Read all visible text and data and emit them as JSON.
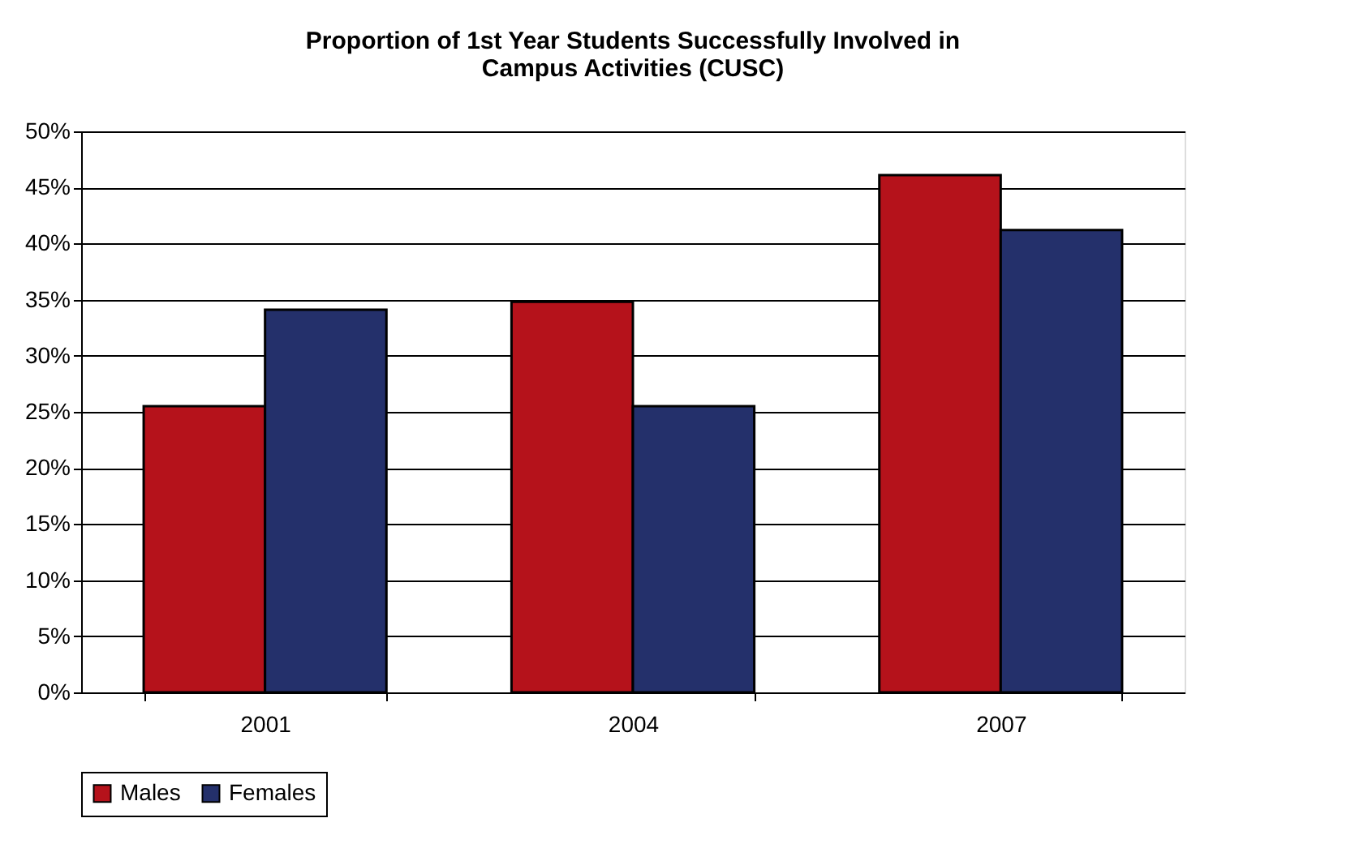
{
  "chart_data": {
    "type": "bar",
    "title": [
      "Proportion of 1st Year Students Successfully  Involved in",
      "Campus Activities (CUSC)"
    ],
    "categories": [
      "2001",
      "2004",
      "2007"
    ],
    "series": [
      {
        "name": "Males",
        "color": "#b5121b",
        "values": [
          25.5,
          34.8,
          46.1
        ]
      },
      {
        "name": "Females",
        "color": "#24306b",
        "values": [
          34.1,
          25.5,
          41.2
        ]
      }
    ],
    "ylim": [
      0,
      50
    ],
    "yticks": [
      {
        "value": 0,
        "label": "0%"
      },
      {
        "value": 5,
        "label": "5%"
      },
      {
        "value": 10,
        "label": "10%"
      },
      {
        "value": 15,
        "label": "15%"
      },
      {
        "value": 20,
        "label": "20%"
      },
      {
        "value": 25,
        "label": "25%"
      },
      {
        "value": 30,
        "label": "30%"
      },
      {
        "value": 35,
        "label": "35%"
      },
      {
        "value": 40,
        "label": "40%"
      },
      {
        "value": 45,
        "label": "45%"
      },
      {
        "value": 50,
        "label": "50%"
      }
    ],
    "grid": "y",
    "legend": "bottom"
  }
}
